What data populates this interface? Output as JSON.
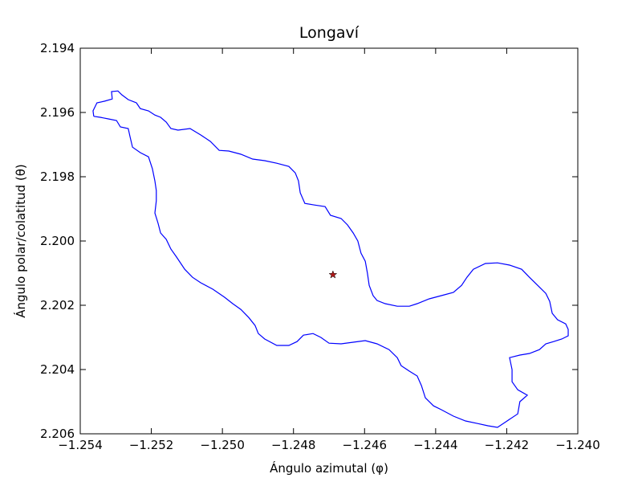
{
  "chart_data": {
    "type": "line",
    "title": "Longaví",
    "xlabel": "Ángulo azimutal (φ)",
    "ylabel": "Ángulo polar/colatitud (θ)",
    "color": "#0000ff",
    "x": [
      -1.25362,
      -1.25364,
      -1.25353,
      -1.25332,
      -1.2531,
      -1.25312,
      -1.25294,
      -1.25283,
      -1.25265,
      -1.25242,
      -1.25231,
      -1.25208,
      -1.2519,
      -1.25174,
      -1.25158,
      -1.25145,
      -1.25125,
      -1.25091,
      -1.25061,
      -1.25034,
      -1.25009,
      -1.24982,
      -1.24948,
      -1.24915,
      -1.24881,
      -1.24847,
      -1.24813,
      -1.24795,
      -1.24786,
      -1.24781,
      -1.24768,
      -1.24741,
      -1.24711,
      -1.24696,
      -1.24666,
      -1.24648,
      -1.24632,
      -1.24619,
      -1.2461,
      -1.24598,
      -1.24592,
      -1.24587,
      -1.24576,
      -1.24565,
      -1.24542,
      -1.24508,
      -1.24474,
      -1.24452,
      -1.24418,
      -1.24384,
      -1.2435,
      -1.24327,
      -1.24312,
      -1.24294,
      -1.2426,
      -1.24226,
      -1.24192,
      -1.24158,
      -1.24136,
      -1.24113,
      -1.2409,
      -1.24079,
      -1.24072,
      -1.24057,
      -1.24034,
      -1.24027,
      -1.24027,
      -1.24045,
      -1.24068,
      -1.2409,
      -1.24108,
      -1.24136,
      -1.24163,
      -1.24192,
      -1.24185,
      -1.24185,
      -1.24169,
      -1.24142,
      -1.24163,
      -1.24169,
      -1.24203,
      -1.24226,
      -1.24253,
      -1.24282,
      -1.24316,
      -1.2435,
      -1.24384,
      -1.24406,
      -1.24429,
      -1.2444,
      -1.24452,
      -1.24474,
      -1.24497,
      -1.24508,
      -1.24531,
      -1.24565,
      -1.24598,
      -1.24632,
      -1.24666,
      -1.247,
      -1.24723,
      -1.24745,
      -1.24772,
      -1.2479,
      -1.24813,
      -1.24847,
      -1.24881,
      -1.24899,
      -1.24908,
      -1.24926,
      -1.24948,
      -1.24971,
      -1.24994,
      -1.25027,
      -1.25061,
      -1.25084,
      -1.25106,
      -1.25129,
      -1.25145,
      -1.25158,
      -1.25174,
      -1.25181,
      -1.2519,
      -1.25186,
      -1.25186,
      -1.2519,
      -1.25197,
      -1.25208,
      -1.25231,
      -1.25253,
      -1.2526,
      -1.25265,
      -1.25287,
      -1.25298,
      -1.25321,
      -1.25344,
      -1.25362
    ],
    "y": [
      2.19612,
      2.19595,
      2.1957,
      2.19565,
      2.19558,
      2.19535,
      2.19533,
      2.19545,
      2.1956,
      2.1957,
      2.19588,
      2.19595,
      2.19608,
      2.19615,
      2.1963,
      2.1965,
      2.19655,
      2.1965,
      2.1967,
      2.1969,
      2.19718,
      2.1972,
      2.1973,
      2.19745,
      2.1975,
      2.19758,
      2.19768,
      2.19788,
      2.19813,
      2.1985,
      2.19883,
      2.19888,
      2.19893,
      2.1992,
      2.1993,
      2.1995,
      2.19975,
      2.2,
      2.20038,
      2.20063,
      2.201,
      2.20138,
      2.2017,
      2.20185,
      2.20195,
      2.20203,
      2.20203,
      2.20195,
      2.2018,
      2.2017,
      2.2016,
      2.20138,
      2.20113,
      2.20088,
      2.2007,
      2.20068,
      2.20075,
      2.20088,
      2.20113,
      2.20138,
      2.20163,
      2.20188,
      2.20225,
      2.20245,
      2.20258,
      2.20275,
      2.20295,
      2.20305,
      2.20313,
      2.2032,
      2.20338,
      2.2035,
      2.20355,
      2.20363,
      2.204,
      2.20438,
      2.20463,
      2.2048,
      2.205,
      2.20538,
      2.20563,
      2.2058,
      2.20575,
      2.20568,
      2.2056,
      2.20545,
      2.20525,
      2.20513,
      2.20488,
      2.2045,
      2.2042,
      2.20405,
      2.20388,
      2.20363,
      2.20338,
      2.2032,
      2.2031,
      2.20315,
      2.2032,
      2.20318,
      2.203,
      2.20288,
      2.20293,
      2.20313,
      2.20325,
      2.20325,
      2.20305,
      2.20288,
      2.20263,
      2.20238,
      2.20213,
      2.20195,
      2.20175,
      2.2015,
      2.2013,
      2.20113,
      2.20088,
      2.2005,
      2.20025,
      2.19995,
      2.19975,
      2.19945,
      2.19913,
      2.19875,
      2.19843,
      2.19813,
      2.19775,
      2.19738,
      2.19725,
      2.19708,
      2.19675,
      2.1965,
      2.19645,
      2.19625,
      2.1962,
      2.19615,
      2.19612
    ],
    "point": {
      "x": -1.24689,
      "y": 2.20105,
      "color": "#b01818",
      "marker": "star"
    },
    "xlim": [
      -1.254,
      -1.24
    ],
    "ylim": [
      2.206,
      2.194
    ],
    "xticks": [
      {
        "value": -1.254,
        "label": "−1.254"
      },
      {
        "value": -1.252,
        "label": "−1.252"
      },
      {
        "value": -1.25,
        "label": "−1.250"
      },
      {
        "value": -1.248,
        "label": "−1.248"
      },
      {
        "value": -1.246,
        "label": "−1.246"
      },
      {
        "value": -1.244,
        "label": "−1.244"
      },
      {
        "value": -1.242,
        "label": "−1.242"
      },
      {
        "value": -1.24,
        "label": "−1.240"
      }
    ],
    "yticks": [
      2.194,
      2.196,
      2.198,
      {
        "value": 2.2,
        "label": "2.200"
      },
      2.202,
      2.204,
      2.206
    ],
    "grid": false
  }
}
